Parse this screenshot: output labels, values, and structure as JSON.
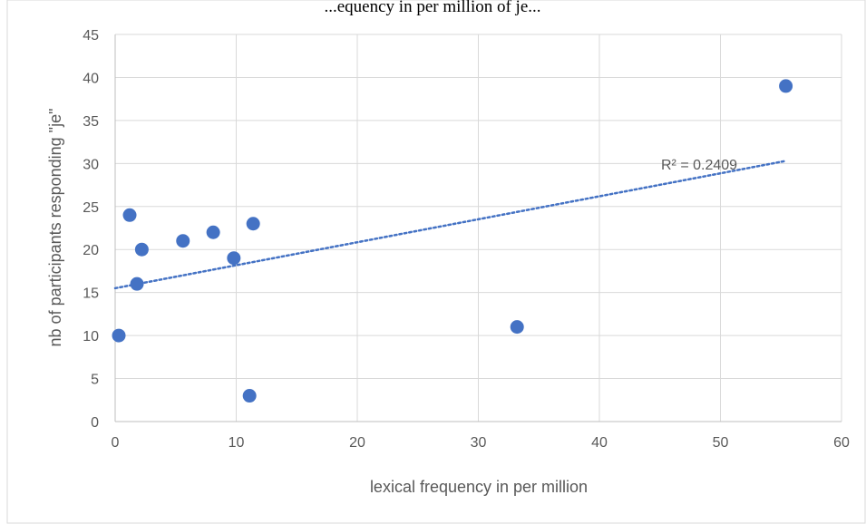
{
  "chart_data": {
    "type": "scatter",
    "title": "...equency in per million of je...",
    "xlabel": "lexical frequency in per million",
    "ylabel": "nb of participants responding \"je\"",
    "xlim": [
      0,
      60
    ],
    "ylim": [
      0,
      45
    ],
    "x_ticks": [
      0,
      10,
      20,
      30,
      40,
      50,
      60
    ],
    "y_ticks": [
      0,
      5,
      10,
      15,
      20,
      25,
      30,
      35,
      40,
      45
    ],
    "grid": true,
    "legend": "none",
    "colors": {
      "marker": "#4472C4",
      "trendline": "#4472C4",
      "grid": "#D9D9D9",
      "text": "#595959"
    },
    "points": [
      {
        "x": 0.3,
        "y": 10
      },
      {
        "x": 1.2,
        "y": 24
      },
      {
        "x": 1.8,
        "y": 16
      },
      {
        "x": 2.2,
        "y": 20
      },
      {
        "x": 5.6,
        "y": 21
      },
      {
        "x": 8.1,
        "y": 22
      },
      {
        "x": 9.8,
        "y": 19
      },
      {
        "x": 11.1,
        "y": 3
      },
      {
        "x": 11.4,
        "y": 23
      },
      {
        "x": 33.2,
        "y": 11
      },
      {
        "x": 55.4,
        "y": 39
      }
    ],
    "trendline": {
      "type": "linear",
      "x_start": 0,
      "x_end": 55.4,
      "y_start": 15.5,
      "y_end": 30.3,
      "r2_label": "R² = 0.2409"
    }
  }
}
